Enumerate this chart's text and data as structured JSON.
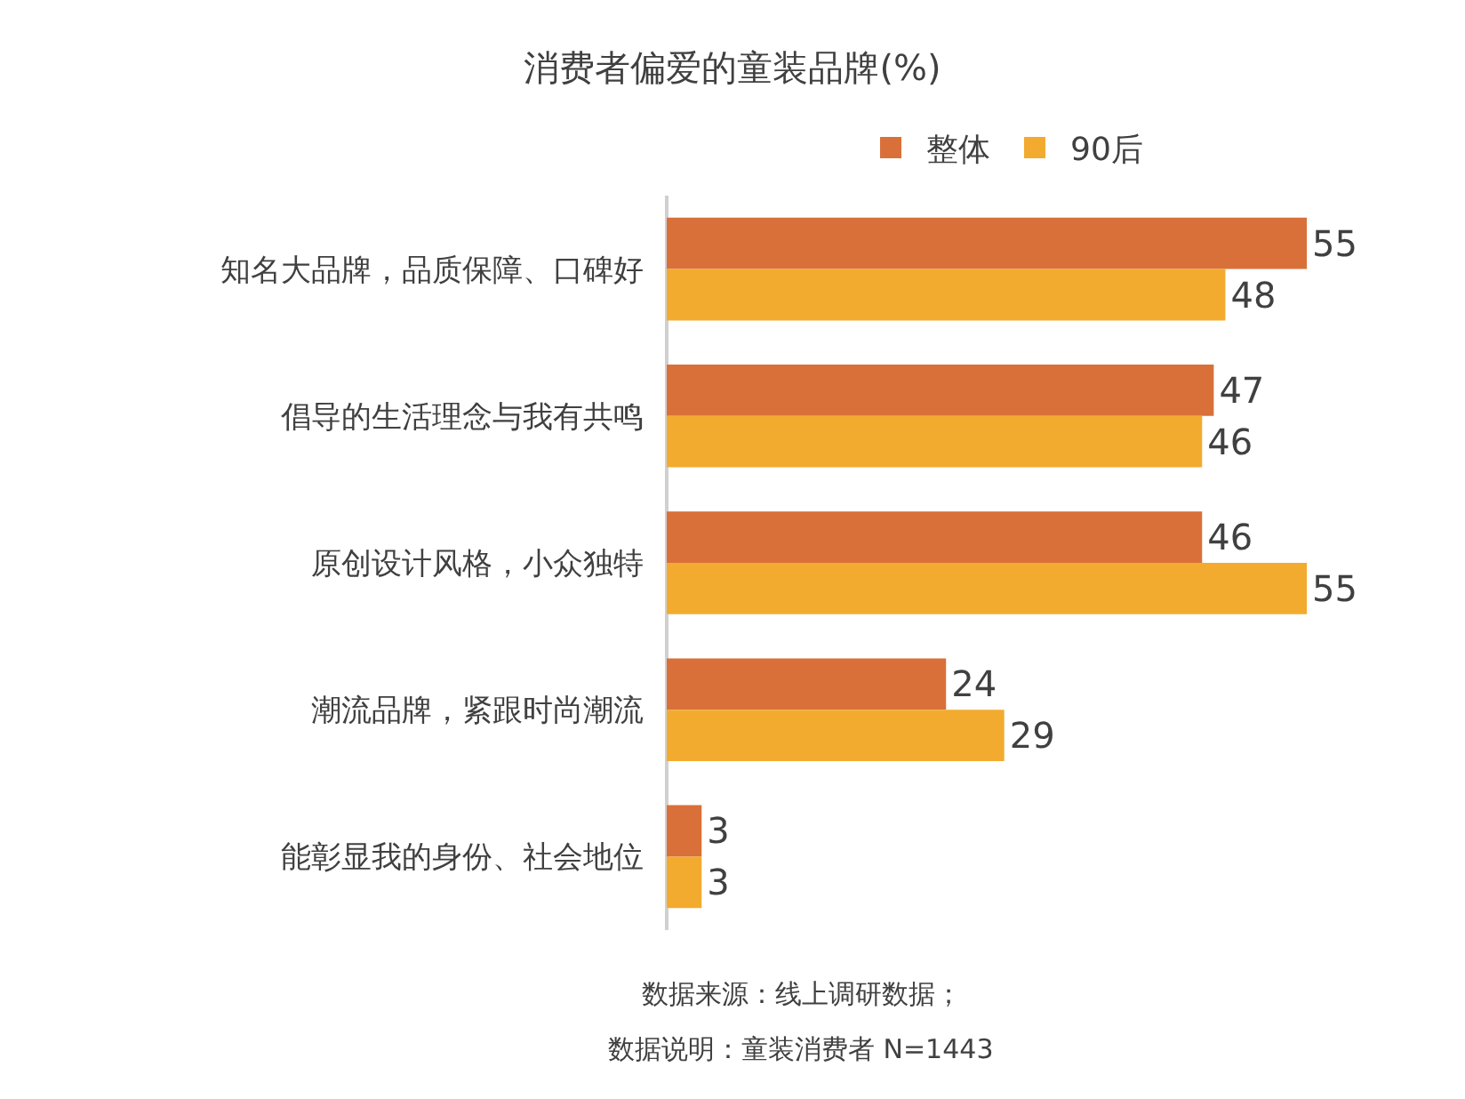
{
  "chart_data": {
    "type": "bar",
    "orientation": "horizontal",
    "title": "消费者偏爱的童装品牌(%)",
    "categories": [
      "知名大品牌，品质保障、口碑好",
      "倡导的生活理念与我有共鸣",
      "原创设计风格，小众独特",
      "潮流品牌，紧跟时尚潮流",
      "能彰显我的身份、社会地位"
    ],
    "series": [
      {
        "name": "整体",
        "color": "#d9703a",
        "values": [
          55,
          47,
          46,
          24,
          3
        ]
      },
      {
        "name": "90后",
        "color": "#f2ab2f",
        "values": [
          48,
          46,
          55,
          29,
          3
        ]
      }
    ],
    "data_labels": true,
    "legend": "top",
    "annotations": [
      "数据来源：线上调研数据；",
      "数据说明：童装消费者 N=1443"
    ]
  }
}
